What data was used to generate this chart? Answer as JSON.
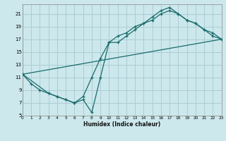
{
  "background_color": "#cce8ec",
  "grid_color": "#aacdd4",
  "line_color": "#1a6b6b",
  "xlim": [
    0,
    23
  ],
  "ylim": [
    5,
    22.5
  ],
  "xticks": [
    0,
    1,
    2,
    3,
    4,
    5,
    6,
    7,
    8,
    9,
    10,
    11,
    12,
    13,
    14,
    15,
    16,
    17,
    18,
    19,
    20,
    21,
    22,
    23
  ],
  "yticks": [
    5,
    7,
    9,
    11,
    13,
    15,
    17,
    19,
    21
  ],
  "xlabel": "Humidex (Indice chaleur)",
  "curve1_x": [
    0,
    1,
    2,
    3,
    4,
    5,
    6,
    7,
    8,
    9,
    10,
    11,
    12,
    13,
    14,
    15,
    16,
    17,
    18,
    19,
    20,
    21,
    22,
    23
  ],
  "curve1_y": [
    11.5,
    10.0,
    9.0,
    8.5,
    8.0,
    7.5,
    7.0,
    7.5,
    5.5,
    11.0,
    16.5,
    16.5,
    17.5,
    18.5,
    19.5,
    20.5,
    21.5,
    22.0,
    21.0,
    20.0,
    19.5,
    18.5,
    18.0,
    17.0
  ],
  "curve2_x": [
    0,
    3,
    4,
    5,
    6,
    7,
    8,
    9,
    10,
    11,
    12,
    13,
    14,
    15,
    16,
    17,
    18,
    19,
    20,
    21,
    22,
    23
  ],
  "curve2_y": [
    11.5,
    8.5,
    8.0,
    7.5,
    7.0,
    8.0,
    11.0,
    14.0,
    16.5,
    17.5,
    18.0,
    19.0,
    19.5,
    20.0,
    21.0,
    21.5,
    21.0,
    20.0,
    19.5,
    18.5,
    17.5,
    17.0
  ],
  "line3_x": [
    0,
    23
  ],
  "line3_y": [
    11.5,
    17.0
  ]
}
